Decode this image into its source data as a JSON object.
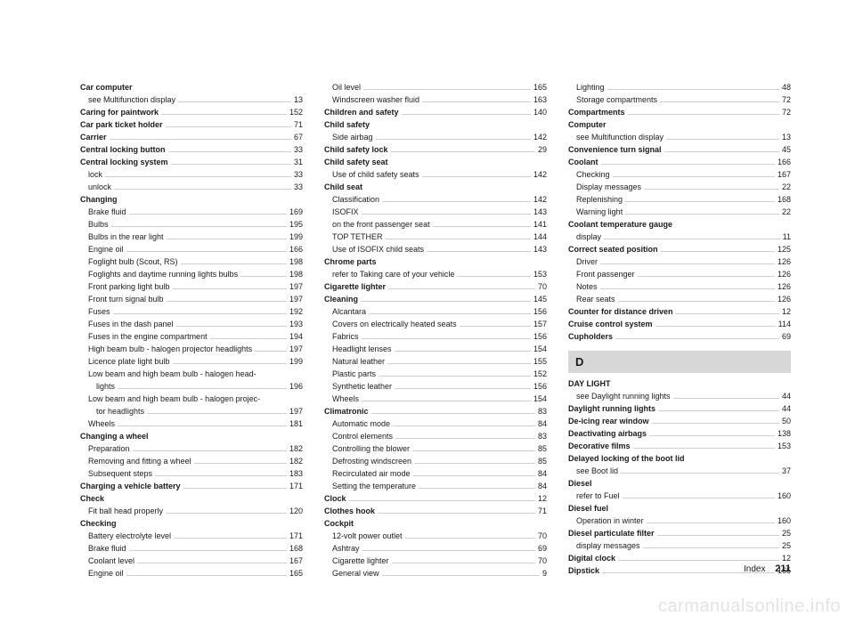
{
  "footer": {
    "label": "Index",
    "page": "211"
  },
  "watermark": "carmanualsonline.info",
  "sectionLetter": "D",
  "columns": [
    [
      {
        "label": "Car computer",
        "head": true
      },
      {
        "label": "see Multifunction display",
        "page": "13",
        "sub": true
      },
      {
        "label": "Caring for paintwork",
        "page": "152",
        "head": true
      },
      {
        "label": "Car park ticket holder",
        "page": "71",
        "head": true
      },
      {
        "label": "Carrier",
        "page": "67",
        "head": true
      },
      {
        "label": "Central locking button",
        "page": "33",
        "head": true
      },
      {
        "label": "Central locking system",
        "page": "31",
        "head": true
      },
      {
        "label": "lock",
        "page": "33",
        "sub": true
      },
      {
        "label": "unlock",
        "page": "33",
        "sub": true
      },
      {
        "label": "Changing",
        "head": true
      },
      {
        "label": "Brake fluid",
        "page": "169",
        "sub": true
      },
      {
        "label": "Bulbs",
        "page": "195",
        "sub": true
      },
      {
        "label": "Bulbs in the rear light",
        "page": "199",
        "sub": true
      },
      {
        "label": "Engine oil",
        "page": "166",
        "sub": true
      },
      {
        "label": "Foglight bulb (Scout, RS)",
        "page": "198",
        "sub": true
      },
      {
        "label": "Foglights and daytime running lights bulbs",
        "page": "198",
        "sub": true
      },
      {
        "label": "Front parking light bulb",
        "page": "197",
        "sub": true
      },
      {
        "label": "Front turn signal bulb",
        "page": "197",
        "sub": true
      },
      {
        "label": "Fuses",
        "page": "192",
        "sub": true
      },
      {
        "label": "Fuses in the dash panel",
        "page": "193",
        "sub": true
      },
      {
        "label": "Fuses in the engine compartment",
        "page": "194",
        "sub": true
      },
      {
        "label": "High beam bulb - halogen projector headlights",
        "page": "197",
        "sub": true
      },
      {
        "label": "Licence plate light bulb",
        "page": "199",
        "sub": true
      },
      {
        "label": "Low beam and high beam bulb - halogen head-",
        "sub": true
      },
      {
        "label": "lights",
        "page": "196",
        "sub2": true
      },
      {
        "label": "Low beam and high beam bulb - halogen projec-",
        "sub": true
      },
      {
        "label": "tor headlights",
        "page": "197",
        "sub2": true
      },
      {
        "label": "Wheels",
        "page": "181",
        "sub": true
      },
      {
        "label": "Changing a wheel",
        "head": true
      },
      {
        "label": "Preparation",
        "page": "182",
        "sub": true
      },
      {
        "label": "Removing and fitting a wheel",
        "page": "182",
        "sub": true
      },
      {
        "label": "Subsequent steps",
        "page": "183",
        "sub": true
      },
      {
        "label": "Charging a vehicle battery",
        "page": "171",
        "head": true
      },
      {
        "label": "Check",
        "head": true
      },
      {
        "label": "Fit ball head properly",
        "page": "120",
        "sub": true
      },
      {
        "label": "Checking",
        "head": true
      },
      {
        "label": "Battery electrolyte level",
        "page": "171",
        "sub": true
      },
      {
        "label": "Brake fluid",
        "page": "168",
        "sub": true
      },
      {
        "label": "Coolant level",
        "page": "167",
        "sub": true
      },
      {
        "label": "Engine oil",
        "page": "165",
        "sub": true
      }
    ],
    [
      {
        "label": "Oil level",
        "page": "165",
        "sub": true
      },
      {
        "label": "Windscreen washer fluid",
        "page": "163",
        "sub": true
      },
      {
        "label": "Children and safety",
        "page": "140",
        "head": true
      },
      {
        "label": "Child safety",
        "head": true
      },
      {
        "label": "Side airbag",
        "page": "142",
        "sub": true
      },
      {
        "label": "Child safety lock",
        "page": "29",
        "head": true
      },
      {
        "label": "Child safety seat",
        "head": true
      },
      {
        "label": "Use of child safety seats",
        "page": "142",
        "sub": true
      },
      {
        "label": "Child seat",
        "head": true
      },
      {
        "label": "Classification",
        "page": "142",
        "sub": true
      },
      {
        "label": "ISOFIX",
        "page": "143",
        "sub": true
      },
      {
        "label": "on the front passenger seat",
        "page": "141",
        "sub": true
      },
      {
        "label": "TOP TETHER",
        "page": "144",
        "sub": true
      },
      {
        "label": "Use of ISOFIX child seats",
        "page": "143",
        "sub": true
      },
      {
        "label": "Chrome parts",
        "head": true
      },
      {
        "label": "refer to Taking care of your vehicle",
        "page": "153",
        "sub": true
      },
      {
        "label": "Cigarette lighter",
        "page": "70",
        "head": true
      },
      {
        "label": "Cleaning",
        "page": "145",
        "head": true
      },
      {
        "label": "Alcantara",
        "page": "156",
        "sub": true
      },
      {
        "label": "Covers on electrically heated seats",
        "page": "157",
        "sub": true
      },
      {
        "label": "Fabrics",
        "page": "156",
        "sub": true
      },
      {
        "label": "Headlight lenses",
        "page": "154",
        "sub": true
      },
      {
        "label": "Natural leather",
        "page": "155",
        "sub": true
      },
      {
        "label": "Plastic parts",
        "page": "152",
        "sub": true
      },
      {
        "label": "Synthetic leather",
        "page": "156",
        "sub": true
      },
      {
        "label": "Wheels",
        "page": "154",
        "sub": true
      },
      {
        "label": "Climatronic",
        "page": "83",
        "head": true
      },
      {
        "label": "Automatic mode",
        "page": "84",
        "sub": true
      },
      {
        "label": "Control elements",
        "page": "83",
        "sub": true
      },
      {
        "label": "Controlling the blower",
        "page": "85",
        "sub": true
      },
      {
        "label": "Defrosting windscreen",
        "page": "85",
        "sub": true
      },
      {
        "label": "Recirculated air mode",
        "page": "84",
        "sub": true
      },
      {
        "label": "Setting the temperature",
        "page": "84",
        "sub": true
      },
      {
        "label": "Clock",
        "page": "12",
        "head": true
      },
      {
        "label": "Clothes hook",
        "page": "71",
        "head": true
      },
      {
        "label": "Cockpit",
        "head": true
      },
      {
        "label": "12-volt power outlet",
        "page": "70",
        "sub": true
      },
      {
        "label": "Ashtray",
        "page": "69",
        "sub": true
      },
      {
        "label": "Cigarette lighter",
        "page": "70",
        "sub": true
      },
      {
        "label": "General view",
        "page": "9",
        "sub": true
      }
    ],
    [
      {
        "label": "Lighting",
        "page": "48",
        "sub": true
      },
      {
        "label": "Storage compartments",
        "page": "72",
        "sub": true
      },
      {
        "label": "Compartments",
        "page": "72",
        "head": true
      },
      {
        "label": "Computer",
        "head": true
      },
      {
        "label": "see Multifunction display",
        "page": "13",
        "sub": true
      },
      {
        "label": "Convenience turn signal",
        "page": "45",
        "head": true
      },
      {
        "label": "Coolant",
        "page": "166",
        "head": true
      },
      {
        "label": "Checking",
        "page": "167",
        "sub": true
      },
      {
        "label": "Display messages",
        "page": "22",
        "sub": true
      },
      {
        "label": "Replenishing",
        "page": "168",
        "sub": true
      },
      {
        "label": "Warning light",
        "page": "22",
        "sub": true
      },
      {
        "label": "Coolant temperature gauge",
        "head": true
      },
      {
        "label": "display",
        "page": "11",
        "sub": true
      },
      {
        "label": "Correct seated position",
        "page": "125",
        "head": true
      },
      {
        "label": "Driver",
        "page": "126",
        "sub": true
      },
      {
        "label": "Front passenger",
        "page": "126",
        "sub": true
      },
      {
        "label": "Notes",
        "page": "126",
        "sub": true
      },
      {
        "label": "Rear seats",
        "page": "126",
        "sub": true
      },
      {
        "label": "Counter for distance driven",
        "page": "12",
        "head": true
      },
      {
        "label": "Cruise control system",
        "page": "114",
        "head": true
      },
      {
        "label": "Cupholders",
        "page": "69",
        "head": true
      },
      {
        "type": "letter"
      },
      {
        "label": "DAY LIGHT",
        "head": true
      },
      {
        "label": "see Daylight running lights",
        "page": "44",
        "sub": true
      },
      {
        "label": "Daylight running lights",
        "page": "44",
        "head": true
      },
      {
        "label": "De-icing rear window",
        "page": "50",
        "head": true
      },
      {
        "label": "Deactivating airbags",
        "page": "138",
        "head": true
      },
      {
        "label": "Decorative films",
        "page": "153",
        "head": true
      },
      {
        "label": "Delayed locking of the boot lid",
        "head": true
      },
      {
        "label": "see Boot lid",
        "page": "37",
        "sub": true
      },
      {
        "label": "Diesel",
        "head": true
      },
      {
        "label": "refer to Fuel",
        "page": "160",
        "sub": true
      },
      {
        "label": "Diesel fuel",
        "head": true
      },
      {
        "label": "Operation in winter",
        "page": "160",
        "sub": true
      },
      {
        "label": "Diesel particulate filter",
        "page": "25",
        "head": true
      },
      {
        "label": "display messages",
        "page": "25",
        "sub": true
      },
      {
        "label": "Digital clock",
        "page": "12",
        "head": true
      },
      {
        "label": "Dipstick",
        "page": "165",
        "head": true
      }
    ]
  ]
}
